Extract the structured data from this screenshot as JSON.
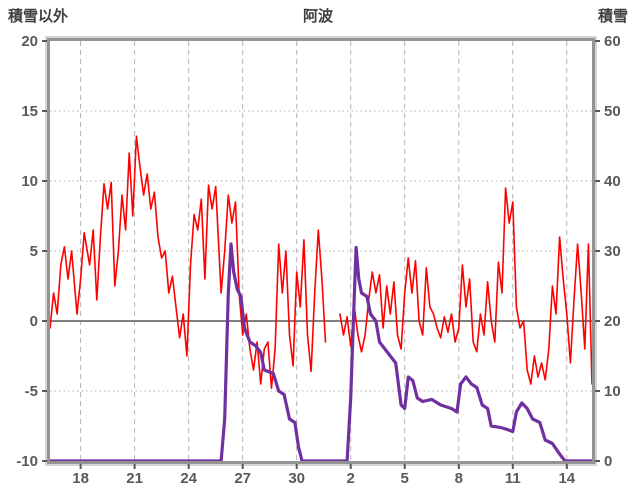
{
  "chart_data": {
    "type": "line",
    "title": "阿波",
    "left_axis": {
      "label": "積雪以外",
      "min": -10,
      "max": 20,
      "ticks": [
        20,
        15,
        10,
        5,
        0,
        -5,
        -10
      ]
    },
    "right_axis": {
      "label": "積雪",
      "min": 0,
      "max": 60,
      "ticks": [
        60,
        50,
        40,
        30,
        20,
        10,
        0
      ]
    },
    "x_axis": {
      "min": 16.3,
      "max": 46.4,
      "tick_positions": [
        18,
        21,
        24,
        27,
        30,
        33,
        36,
        39,
        42,
        45
      ],
      "tick_labels": [
        "18",
        "21",
        "24",
        "27",
        "30",
        "2",
        "5",
        "8",
        "11",
        "14"
      ]
    },
    "grid": {
      "vertical": "dashed",
      "horizontal": "dotted",
      "zero_line": true
    },
    "series": [
      {
        "name": "積雪以外",
        "axis": "left",
        "color": "#ff0000",
        "width": 1.6,
        "data_name": "temperature-line",
        "segments": [
          [
            [
              16.3,
              -0.5
            ],
            [
              16.5,
              2.0
            ],
            [
              16.7,
              0.5
            ],
            [
              16.9,
              4.0
            ],
            [
              17.1,
              5.3
            ],
            [
              17.3,
              3.0
            ],
            [
              17.5,
              5.0
            ],
            [
              17.8,
              0.5
            ],
            [
              18.0,
              3.0
            ],
            [
              18.2,
              6.3
            ],
            [
              18.5,
              4.0
            ],
            [
              18.7,
              6.5
            ],
            [
              18.9,
              1.5
            ],
            [
              19.1,
              6.0
            ],
            [
              19.3,
              9.8
            ],
            [
              19.5,
              8.0
            ],
            [
              19.7,
              9.9
            ],
            [
              19.9,
              2.5
            ],
            [
              20.1,
              5.0
            ],
            [
              20.3,
              9.0
            ],
            [
              20.5,
              6.5
            ],
            [
              20.7,
              12.0
            ],
            [
              20.9,
              7.5
            ],
            [
              21.1,
              13.2
            ],
            [
              21.3,
              11.0
            ],
            [
              21.5,
              9.0
            ],
            [
              21.7,
              10.5
            ],
            [
              21.9,
              8.0
            ],
            [
              22.1,
              9.2
            ],
            [
              22.3,
              6.0
            ],
            [
              22.5,
              4.5
            ],
            [
              22.7,
              5.0
            ],
            [
              22.9,
              2.0
            ],
            [
              23.1,
              3.2
            ],
            [
              23.3,
              1.0
            ],
            [
              23.5,
              -1.2
            ],
            [
              23.7,
              0.5
            ],
            [
              23.9,
              -2.5
            ],
            [
              24.1,
              4.0
            ],
            [
              24.3,
              7.6
            ],
            [
              24.5,
              6.5
            ],
            [
              24.7,
              8.7
            ],
            [
              24.9,
              3.0
            ],
            [
              25.1,
              9.7
            ],
            [
              25.3,
              8.0
            ],
            [
              25.5,
              9.6
            ],
            [
              25.8,
              2.0
            ],
            [
              26.0,
              5.0
            ],
            [
              26.2,
              9.0
            ],
            [
              26.4,
              7.0
            ],
            [
              26.6,
              8.5
            ],
            [
              26.8,
              2.0
            ],
            [
              27.0,
              -1.0
            ],
            [
              27.2,
              0.5
            ],
            [
              27.4,
              -2.0
            ],
            [
              27.6,
              -3.5
            ],
            [
              27.8,
              -1.5
            ],
            [
              28.0,
              -4.5
            ],
            [
              28.2,
              -2.0
            ],
            [
              28.4,
              -1.5
            ],
            [
              28.6,
              -4.8
            ],
            [
              28.8,
              -2.0
            ],
            [
              29.0,
              5.5
            ],
            [
              29.2,
              2.0
            ],
            [
              29.4,
              5.0
            ],
            [
              29.6,
              -1.0
            ],
            [
              29.8,
              -3.2
            ],
            [
              30.0,
              3.5
            ],
            [
              30.2,
              1.0
            ],
            [
              30.4,
              5.8
            ],
            [
              30.6,
              -1.0
            ],
            [
              30.8,
              -3.6
            ],
            [
              31.0,
              2.0
            ],
            [
              31.2,
              6.5
            ],
            [
              31.4,
              3.0
            ],
            [
              31.6,
              -1.5
            ]
          ],
          [
            [
              32.4,
              0.5
            ],
            [
              32.6,
              -1.0
            ],
            [
              32.8,
              0.3
            ],
            [
              33.0,
              -1.8
            ],
            [
              33.2,
              1.0
            ],
            [
              33.4,
              -1.0
            ],
            [
              33.6,
              -2.2
            ],
            [
              33.8,
              -1.0
            ],
            [
              34.0,
              1.5
            ],
            [
              34.2,
              3.5
            ],
            [
              34.4,
              2.0
            ],
            [
              34.6,
              3.3
            ],
            [
              34.8,
              -0.5
            ],
            [
              35.0,
              2.5
            ],
            [
              35.2,
              0.5
            ],
            [
              35.4,
              2.8
            ],
            [
              35.6,
              -1.0
            ],
            [
              35.8,
              -2.0
            ],
            [
              36.0,
              2.0
            ],
            [
              36.2,
              4.5
            ],
            [
              36.4,
              2.0
            ],
            [
              36.6,
              4.3
            ],
            [
              36.8,
              0.0
            ],
            [
              37.0,
              -1.0
            ],
            [
              37.2,
              3.8
            ],
            [
              37.4,
              1.0
            ],
            [
              37.6,
              0.5
            ],
            [
              37.8,
              -0.5
            ],
            [
              38.0,
              -1.2
            ],
            [
              38.2,
              0.3
            ],
            [
              38.4,
              -0.8
            ],
            [
              38.6,
              0.5
            ],
            [
              38.8,
              -1.5
            ],
            [
              39.0,
              -0.5
            ],
            [
              39.2,
              4.0
            ],
            [
              39.4,
              1.0
            ],
            [
              39.6,
              3.0
            ],
            [
              39.8,
              -1.5
            ],
            [
              40.0,
              -2.2
            ],
            [
              40.2,
              0.5
            ],
            [
              40.4,
              -1.0
            ],
            [
              40.6,
              2.8
            ],
            [
              40.8,
              0.0
            ],
            [
              41.0,
              -1.5
            ],
            [
              41.2,
              4.2
            ],
            [
              41.4,
              2.0
            ],
            [
              41.6,
              9.5
            ],
            [
              41.8,
              7.0
            ],
            [
              42.0,
              8.5
            ],
            [
              42.2,
              1.0
            ],
            [
              42.4,
              -0.5
            ],
            [
              42.6,
              0.0
            ],
            [
              42.8,
              -3.5
            ],
            [
              43.0,
              -4.5
            ],
            [
              43.2,
              -2.5
            ],
            [
              43.4,
              -4.0
            ],
            [
              43.6,
              -3.0
            ],
            [
              43.8,
              -4.2
            ],
            [
              44.0,
              -2.0
            ],
            [
              44.2,
              2.5
            ],
            [
              44.4,
              0.5
            ],
            [
              44.6,
              6.0
            ],
            [
              44.8,
              3.0
            ],
            [
              45.0,
              0.5
            ],
            [
              45.2,
              -3.0
            ],
            [
              45.4,
              1.5
            ],
            [
              45.6,
              5.5
            ],
            [
              45.8,
              2.0
            ],
            [
              46.0,
              -2.0
            ],
            [
              46.2,
              5.5
            ],
            [
              46.4,
              -4.5
            ]
          ]
        ]
      },
      {
        "name": "積雪",
        "axis": "right",
        "color": "#7030a0",
        "width": 3.2,
        "data_name": "snow-depth-line",
        "segments": [
          [
            [
              16.3,
              0
            ],
            [
              25.8,
              0
            ],
            [
              26.0,
              6
            ],
            [
              26.2,
              24
            ],
            [
              26.35,
              31
            ],
            [
              26.5,
              27
            ],
            [
              26.7,
              24.5
            ],
            [
              26.9,
              23.5
            ],
            [
              27.1,
              19
            ],
            [
              27.4,
              17
            ],
            [
              27.7,
              16.5
            ],
            [
              28.0,
              15.5
            ],
            [
              28.2,
              13
            ],
            [
              28.7,
              12.5
            ],
            [
              29.0,
              10
            ],
            [
              29.3,
              9.5
            ],
            [
              29.6,
              6
            ],
            [
              29.9,
              5.5
            ],
            [
              30.1,
              2
            ],
            [
              30.3,
              0
            ],
            [
              32.8,
              0
            ],
            [
              33.0,
              9
            ],
            [
              33.15,
              20
            ],
            [
              33.3,
              30.5
            ],
            [
              33.45,
              26
            ],
            [
              33.6,
              24
            ],
            [
              33.9,
              23.5
            ],
            [
              34.1,
              21
            ],
            [
              34.4,
              20
            ],
            [
              34.6,
              17
            ],
            [
              34.9,
              16
            ],
            [
              35.2,
              15
            ],
            [
              35.5,
              14
            ],
            [
              35.8,
              8
            ],
            [
              36.0,
              7.5
            ],
            [
              36.2,
              12
            ],
            [
              36.45,
              11.5
            ],
            [
              36.7,
              9
            ],
            [
              37.0,
              8.5
            ],
            [
              37.5,
              8.8
            ],
            [
              38.0,
              8
            ],
            [
              38.6,
              7.5
            ],
            [
              38.9,
              7
            ],
            [
              39.1,
              11
            ],
            [
              39.4,
              12
            ],
            [
              39.7,
              11
            ],
            [
              40.0,
              10.5
            ],
            [
              40.3,
              8
            ],
            [
              40.6,
              7.5
            ],
            [
              40.8,
              5
            ],
            [
              41.3,
              4.8
            ],
            [
              41.7,
              4.5
            ],
            [
              42.0,
              4.2
            ],
            [
              42.2,
              7
            ],
            [
              42.5,
              8.3
            ],
            [
              42.8,
              7.5
            ],
            [
              43.1,
              6
            ],
            [
              43.5,
              5.5
            ],
            [
              43.8,
              3
            ],
            [
              44.2,
              2.5
            ],
            [
              44.6,
              1
            ],
            [
              44.9,
              0
            ],
            [
              46.4,
              0
            ]
          ]
        ]
      }
    ]
  }
}
